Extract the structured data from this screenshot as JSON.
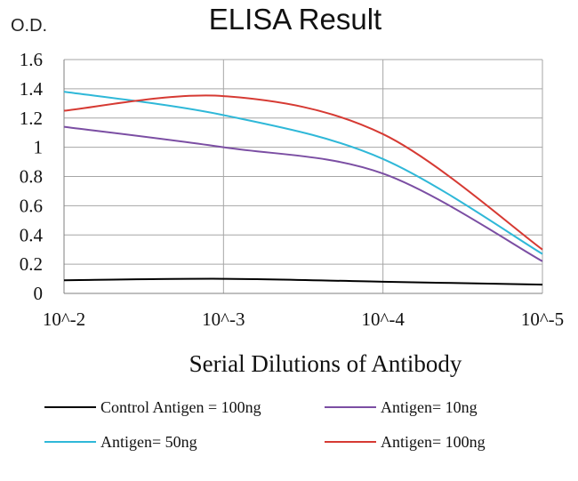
{
  "chart_data": {
    "type": "line",
    "title": "ELISA Result",
    "ylabel": "O.D.",
    "xlabel": "Serial Dilutions  of Antibody",
    "categories": [
      "10^-2",
      "10^-3",
      "10^-4",
      "10^-5"
    ],
    "ylim": [
      0,
      1.6
    ],
    "yticks": [
      "0",
      "0.2",
      "0.4",
      "0.6",
      "0.8",
      "1",
      "1.2",
      "1.4",
      "1.6"
    ],
    "grid": true,
    "legend_position": "bottom",
    "series": [
      {
        "name": "Control Antigen = 100ng",
        "color": "#000000",
        "values": [
          0.09,
          0.1,
          0.08,
          0.06
        ]
      },
      {
        "name": "Antigen= 10ng",
        "color": "#7b4ea3",
        "values": [
          1.14,
          1.0,
          0.82,
          0.22
        ]
      },
      {
        "name": "Antigen= 50ng",
        "color": "#2fb8d8",
        "values": [
          1.38,
          1.22,
          0.92,
          0.27
        ]
      },
      {
        "name": "Antigen= 100ng",
        "color": "#d63a33",
        "values": [
          1.25,
          1.35,
          1.09,
          0.3
        ]
      }
    ]
  }
}
